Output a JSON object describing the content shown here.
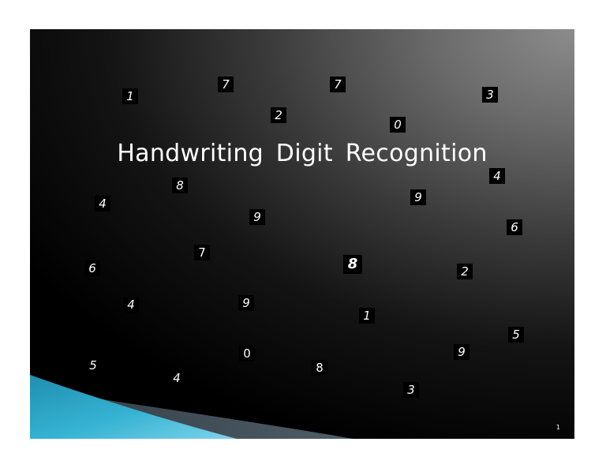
{
  "slide": {
    "title": "Handwriting  Digit  Recognition",
    "page_number": "1",
    "background_colors": {
      "highlight": "#8c8c8c",
      "dark": "#000000"
    },
    "accent_colors": {
      "teal": "#2aa3c3",
      "slate": "#4a5a66"
    }
  },
  "digits": [
    "1",
    "7",
    "7",
    "3",
    "2",
    "0",
    "8",
    "4",
    "9",
    "4",
    "9",
    "6",
    "7",
    "8",
    "6",
    "2",
    "4",
    "9",
    "1",
    "5",
    "0",
    "9",
    "5",
    "4",
    "8",
    "3"
  ]
}
